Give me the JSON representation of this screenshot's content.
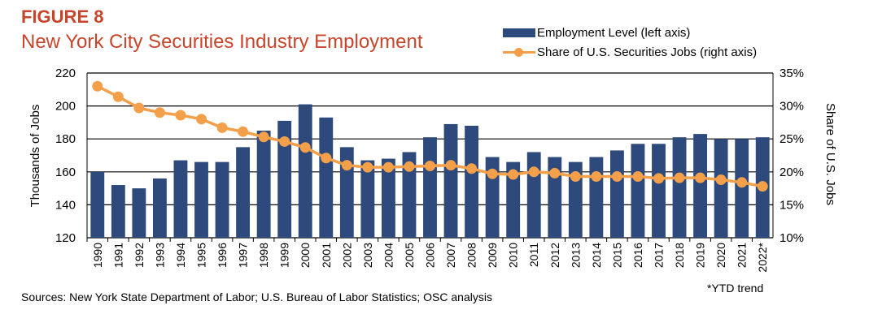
{
  "figure_label": "FIGURE 8",
  "title": "New York City Securities Industry Employment",
  "legend": {
    "bar": "Employment Level (left axis)",
    "line": "Share of U.S. Securities Jobs (right axis)"
  },
  "footnote": "*YTD trend",
  "sources": "Sources: New York State Department of Labor; U.S. Bureau of Labor Statistics; OSC analysis",
  "colors": {
    "bar": "#2E4A7D",
    "line": "#F4A04B",
    "title": "#C8452B"
  },
  "chart_data": {
    "type": "bar",
    "categories": [
      "1990",
      "1991",
      "1992",
      "1993",
      "1994",
      "1995",
      "1996",
      "1997",
      "1998",
      "1999",
      "2000",
      "2001",
      "2002",
      "2003",
      "2004",
      "2005",
      "2006",
      "2007",
      "2008",
      "2009",
      "2010",
      "2011",
      "2012",
      "2013",
      "2014",
      "2015",
      "2016",
      "2017",
      "2018",
      "2019",
      "2020",
      "2021",
      "2022*"
    ],
    "series": [
      {
        "name": "Employment Level (left axis)",
        "type": "bar",
        "axis": "left",
        "values": [
          160,
          152,
          150,
          156,
          167,
          166,
          166,
          175,
          185,
          191,
          201,
          193,
          175,
          167,
          168,
          172,
          181,
          189,
          188,
          169,
          166,
          172,
          169,
          166,
          169,
          173,
          177,
          177,
          181,
          183,
          180,
          180,
          181
        ]
      },
      {
        "name": "Share of U.S. Securities Jobs (right axis)",
        "type": "line",
        "axis": "right",
        "values": [
          33.0,
          31.4,
          29.7,
          29.0,
          28.6,
          28.0,
          26.7,
          26.1,
          25.3,
          24.6,
          23.7,
          22.1,
          21.0,
          20.7,
          20.7,
          20.8,
          20.9,
          21.0,
          20.5,
          19.7,
          19.6,
          20.0,
          19.8,
          19.3,
          19.3,
          19.3,
          19.3,
          19.0,
          19.1,
          19.1,
          18.8,
          18.4,
          17.8
        ]
      }
    ],
    "ylabel_left": "Thousands of Jobs",
    "ylabel_right": "Share of U.S. Jobs",
    "ylim_left": [
      120,
      220
    ],
    "yticks_left": [
      "120",
      "140",
      "160",
      "180",
      "200",
      "220"
    ],
    "ylim_right": [
      10,
      35
    ],
    "yticks_right": [
      "10%",
      "15%",
      "20%",
      "25%",
      "30%",
      "35%"
    ],
    "grid": true,
    "legend_position": "top-right"
  }
}
